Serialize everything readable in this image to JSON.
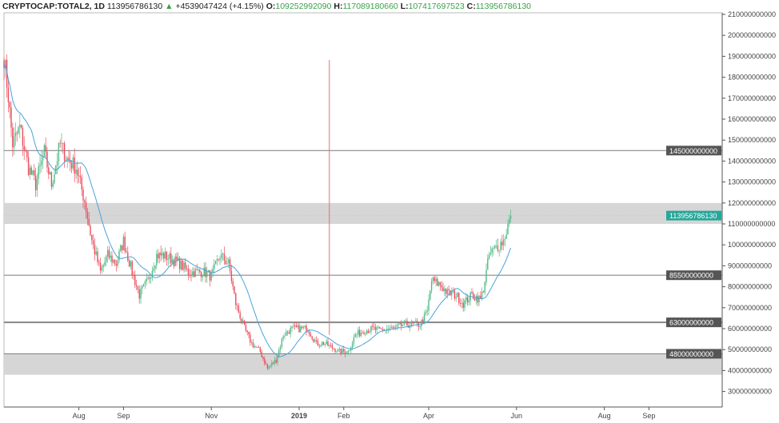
{
  "header": {
    "symbol": "CRYPTOCAP:TOTAL2, 1D",
    "last": "113956786130",
    "change": "+4539047424 (+4.15%)",
    "o_label": "O:",
    "o": "109252992090",
    "h_label": "H:",
    "h": "117089180660",
    "l_label": "L:",
    "l": "107417697523",
    "c_label": "C:",
    "c": "113956786130"
  },
  "colors": {
    "up": "#53b987",
    "down": "#eb4d5c",
    "ma": "#4aa3d9",
    "band": "#d6d6d6",
    "last_label": "#26a69a",
    "level_label": "#555555",
    "vline": "#e57373"
  },
  "chart_data": {
    "type": "candlestick",
    "title": "CRYPTOCAP:TOTAL2, 1D",
    "start_date": "2018-06-10",
    "ylim": [
      25000000000,
      210000000000
    ],
    "y_ticks": [
      "210000000000",
      "200000000000",
      "190000000000",
      "180000000000",
      "170000000000",
      "160000000000",
      "150000000000",
      "140000000000",
      "130000000000",
      "120000000000",
      "110000000000",
      "100000000000",
      "90000000000",
      "80000000000",
      "70000000000",
      "60000000000",
      "50000000000",
      "40000000000",
      "30000000000"
    ],
    "x_ticks": [
      {
        "label": "Aug",
        "day": 52
      },
      {
        "label": "Sep",
        "day": 83
      },
      {
        "label": "Nov",
        "day": 144
      },
      {
        "label": "2019",
        "day": 205
      },
      {
        "label": "Feb",
        "day": 236
      },
      {
        "label": "Apr",
        "day": 295
      },
      {
        "label": "Jun",
        "day": 356
      },
      {
        "label": "Aug",
        "day": 417
      },
      {
        "label": "Sep",
        "day": 448
      }
    ],
    "close_keypoints_billion": [
      [
        0,
        190
      ],
      [
        3,
        171
      ],
      [
        6,
        148
      ],
      [
        11,
        156
      ],
      [
        17,
        137
      ],
      [
        22,
        129
      ],
      [
        28,
        144
      ],
      [
        33,
        129
      ],
      [
        39,
        148
      ],
      [
        44,
        141
      ],
      [
        50,
        137
      ],
      [
        56,
        121
      ],
      [
        61,
        102
      ],
      [
        67,
        87
      ],
      [
        72,
        95
      ],
      [
        78,
        91
      ],
      [
        83,
        102
      ],
      [
        89,
        87
      ],
      [
        94,
        76
      ],
      [
        100,
        83
      ],
      [
        106,
        95
      ],
      [
        111,
        95
      ],
      [
        117,
        93
      ],
      [
        122,
        91
      ],
      [
        128,
        87
      ],
      [
        133,
        87
      ],
      [
        139,
        87
      ],
      [
        144,
        85
      ],
      [
        150,
        95
      ],
      [
        156,
        91
      ],
      [
        161,
        72
      ],
      [
        167,
        60
      ],
      [
        172,
        53
      ],
      [
        178,
        49
      ],
      [
        183,
        41
      ],
      [
        189,
        45
      ],
      [
        194,
        57
      ],
      [
        200,
        60
      ],
      [
        206,
        60
      ],
      [
        211,
        60
      ],
      [
        217,
        53
      ],
      [
        222,
        53
      ],
      [
        228,
        51
      ],
      [
        233,
        49
      ],
      [
        239,
        49
      ],
      [
        244,
        57
      ],
      [
        250,
        59
      ],
      [
        256,
        60
      ],
      [
        261,
        59
      ],
      [
        267,
        60
      ],
      [
        272,
        60
      ],
      [
        278,
        62
      ],
      [
        283,
        62
      ],
      [
        289,
        62
      ],
      [
        294,
        68
      ],
      [
        297,
        83
      ],
      [
        303,
        81
      ],
      [
        308,
        77
      ],
      [
        314,
        76
      ],
      [
        319,
        72
      ],
      [
        325,
        76
      ],
      [
        331,
        74
      ],
      [
        333,
        79
      ],
      [
        337,
        95
      ],
      [
        342,
        99
      ],
      [
        347,
        102
      ],
      [
        352,
        114
      ]
    ],
    "moving_average_period": 20,
    "horizontal_levels": [
      {
        "value": 145000000000,
        "label": "145000000000"
      },
      {
        "value": 85500000000,
        "label": "85500000000"
      },
      {
        "value": 63000000000,
        "label": "63000000000"
      },
      {
        "value": 48000000000,
        "label": "48000000000"
      }
    ],
    "bands": [
      [
        110000000000,
        120000000000
      ],
      [
        38000000000,
        48000000000
      ]
    ],
    "vertical_marker_day": 226,
    "last_price_label": "113956786130",
    "last_price": 113956786130
  }
}
